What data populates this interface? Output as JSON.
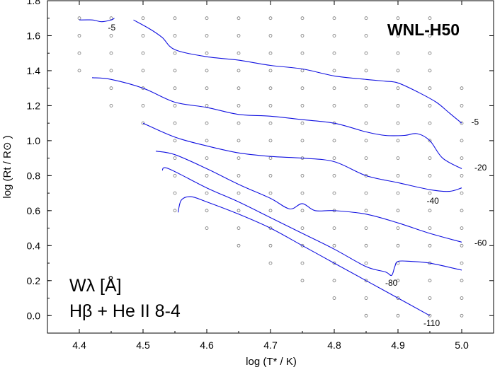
{
  "chart_data": {
    "type": "line",
    "title": "WNL-H50",
    "xlabel": "log (T* / K)",
    "ylabel": "log (Rt / R⊙ )",
    "xlim": [
      4.35,
      5.05
    ],
    "ylim": [
      -0.1,
      1.8
    ],
    "x_ticks": [
      "4.4",
      "4.5",
      "4.6",
      "4.7",
      "4.8",
      "4.9",
      "5.0"
    ],
    "y_ticks": [
      "0.0",
      "0.2",
      "0.4",
      "0.6",
      "0.8",
      "1.0",
      "1.2",
      "1.4",
      "1.6",
      "1.8"
    ],
    "annotation_line1": "Wλ [Å]",
    "annotation_line2": "Hβ + He II 8-4",
    "grid": false,
    "model_grid_points": {
      "x": [
        4.4,
        4.45,
        4.5,
        4.55,
        4.6,
        4.65,
        4.7,
        4.75,
        4.8,
        4.85,
        4.9,
        4.95,
        5.0
      ],
      "y_max": [
        1.7,
        1.7,
        1.7,
        1.7,
        1.7,
        1.7,
        1.7,
        1.7,
        1.7,
        1.7,
        1.7,
        1.7,
        1.3
      ],
      "y_min": [
        1.4,
        1.2,
        1.1,
        0.6,
        0.5,
        0.4,
        0.3,
        0.2,
        0.1,
        0.0,
        0.0,
        0.0,
        0.0
      ],
      "step": 0.1
    },
    "series": [
      {
        "label": "-5",
        "label_pos": [
          4.445,
          1.63
        ],
        "x": [
          4.4,
          4.42,
          4.435,
          4.45,
          4.455
        ],
        "y": [
          1.69,
          1.69,
          1.68,
          1.69,
          1.7
        ]
      },
      {
        "label": "-5",
        "label_pos": [
          5.015,
          1.09
        ],
        "x": [
          4.485,
          4.51,
          4.53,
          4.55,
          4.6,
          4.65,
          4.7,
          4.75,
          4.8,
          4.85,
          4.88,
          4.9,
          4.93,
          4.96,
          4.98,
          5.0
        ],
        "y": [
          1.69,
          1.64,
          1.59,
          1.52,
          1.48,
          1.46,
          1.43,
          1.41,
          1.37,
          1.35,
          1.34,
          1.33,
          1.28,
          1.22,
          1.16,
          1.1
        ]
      },
      {
        "label": "-20",
        "label_pos": [
          5.02,
          0.83
        ],
        "x": [
          4.42,
          4.45,
          4.5,
          4.55,
          4.6,
          4.65,
          4.7,
          4.75,
          4.8,
          4.85,
          4.88,
          4.91,
          4.93,
          4.95,
          4.97,
          5.0
        ],
        "y": [
          1.36,
          1.35,
          1.3,
          1.22,
          1.19,
          1.15,
          1.14,
          1.12,
          1.1,
          1.05,
          1.03,
          1.03,
          1.04,
          1.0,
          0.9,
          0.84
        ]
      },
      {
        "label": "-40",
        "label_pos": [
          4.945,
          0.64
        ],
        "x": [
          4.5,
          4.55,
          4.6,
          4.65,
          4.7,
          4.75,
          4.8,
          4.85,
          4.9,
          4.95,
          4.98,
          5.0
        ],
        "y": [
          1.1,
          1.02,
          0.97,
          0.93,
          0.91,
          0.9,
          0.88,
          0.8,
          0.76,
          0.72,
          0.71,
          0.73
        ]
      },
      {
        "label": "-60",
        "label_pos": [
          5.02,
          0.4
        ],
        "x": [
          4.52,
          4.55,
          4.6,
          4.65,
          4.7,
          4.73,
          4.75,
          4.77,
          4.8,
          4.85,
          4.9,
          4.95,
          5.0
        ],
        "y": [
          0.94,
          0.92,
          0.84,
          0.75,
          0.67,
          0.61,
          0.64,
          0.6,
          0.6,
          0.58,
          0.53,
          0.47,
          0.42
        ]
      },
      {
        "label": "-80",
        "label_pos": [
          4.88,
          0.17
        ],
        "x": [
          4.53,
          4.54,
          4.6,
          4.65,
          4.7,
          4.75,
          4.8,
          4.85,
          4.88,
          4.89,
          4.895,
          4.9,
          4.92,
          4.95,
          5.0
        ],
        "y": [
          0.83,
          0.84,
          0.73,
          0.65,
          0.56,
          0.47,
          0.38,
          0.28,
          0.25,
          0.23,
          0.28,
          0.31,
          0.31,
          0.3,
          0.26
        ]
      },
      {
        "label": "-110",
        "label_pos": [
          4.94,
          -0.06
        ],
        "x": [
          4.555,
          4.56,
          4.575,
          4.6,
          4.65,
          4.7,
          4.75,
          4.8,
          4.85,
          4.9,
          4.95
        ],
        "y": [
          0.59,
          0.66,
          0.68,
          0.65,
          0.58,
          0.5,
          0.4,
          0.3,
          0.2,
          0.1,
          0.0
        ]
      }
    ]
  }
}
